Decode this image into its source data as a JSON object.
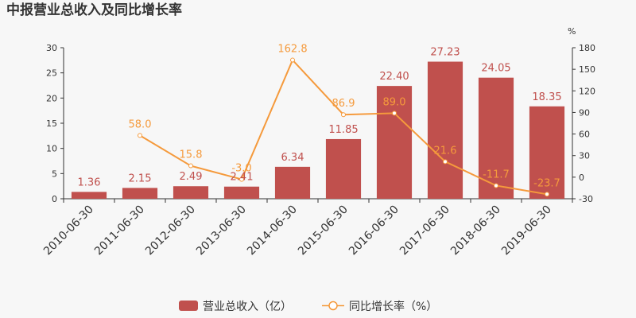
{
  "chart_data": {
    "type": "bar",
    "title": "中报营业总收入及同比增长率",
    "categories": [
      "2010-06-30",
      "2011-06-30",
      "2012-06-30",
      "2013-06-30",
      "2014-06-30",
      "2015-06-30",
      "2016-06-30",
      "2017-06-30",
      "2018-06-30",
      "2019-06-30"
    ],
    "series": [
      {
        "name": "营业总收入（亿）",
        "type": "bar",
        "axis": "left",
        "color": "#c0504d",
        "values": [
          1.36,
          2.15,
          2.49,
          2.41,
          6.34,
          11.85,
          22.4,
          27.23,
          24.05,
          18.35
        ],
        "labels": [
          "1.36",
          "2.15",
          "2.49",
          "2.41",
          "6.34",
          "11.85",
          "22.40",
          "27.23",
          "24.05",
          "18.35"
        ]
      },
      {
        "name": "同比增长率（%）",
        "type": "line",
        "axis": "right",
        "color": "#f59a3c",
        "values": [
          null,
          58.0,
          15.8,
          -3.0,
          162.8,
          86.9,
          89.0,
          21.6,
          -11.7,
          -23.7
        ],
        "labels": [
          "",
          "58.0",
          "15.8",
          "-3.0",
          "162.8",
          "86.9",
          "89.0",
          "21.6",
          "-11.7",
          "-23.7"
        ]
      }
    ],
    "ylim_left": [
      0,
      30
    ],
    "yticks_left": [
      0,
      5,
      10,
      15,
      20,
      25,
      30
    ],
    "ylim_right": [
      -30,
      180
    ],
    "yticks_right": [
      -30,
      0,
      30,
      60,
      90,
      120,
      150,
      180
    ],
    "ylabel_right": "%",
    "grid": false,
    "legend_position": "bottom"
  }
}
